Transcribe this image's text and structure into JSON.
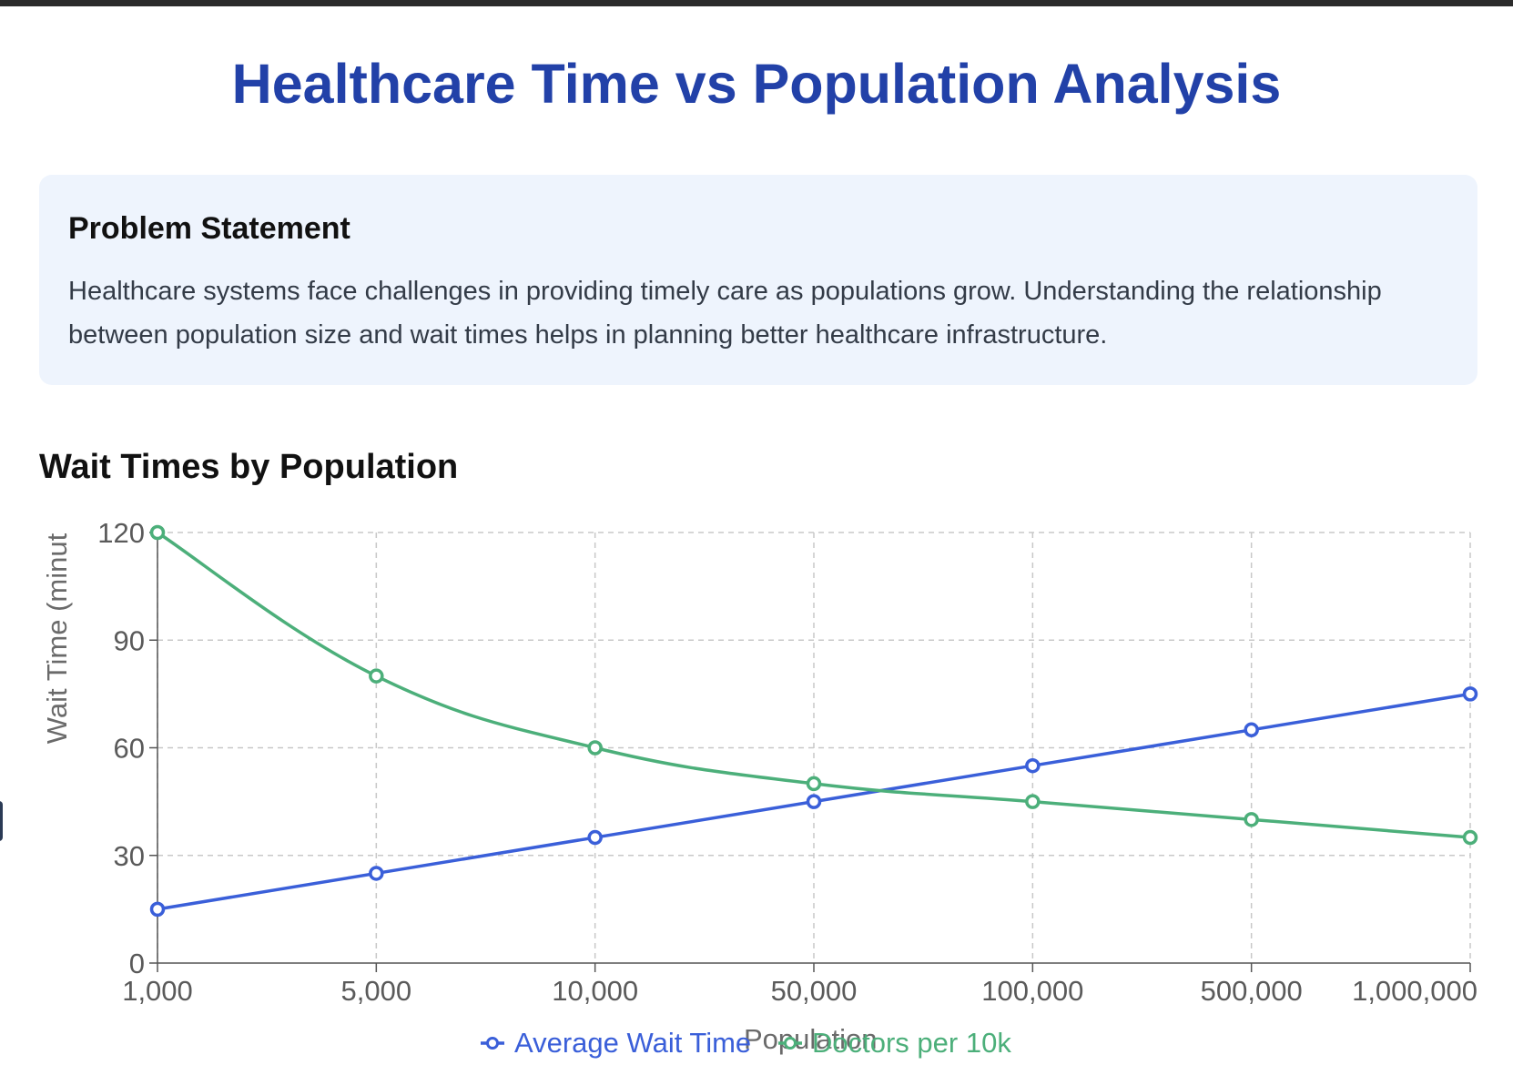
{
  "page": {
    "title": "Healthcare Time vs Population Analysis"
  },
  "problem": {
    "heading": "Problem Statement",
    "text": "Healthcare systems face challenges in providing timely care as populations grow. Understanding the relationship between population size and wait times helps in planning better healthcare infrastructure."
  },
  "colors": {
    "title": "#2241a8",
    "wait_series": "#3a5fd9",
    "doctors_series": "#4caf7a",
    "grid": "#c8c8c8",
    "axis_text": "#5a5a5a"
  },
  "chart_data": {
    "type": "line",
    "title": "Wait Times by Population",
    "xlabel": "Population",
    "ylabel": "Wait Time (minut",
    "categories": [
      "1,000",
      "5,000",
      "10,000",
      "50,000",
      "100,000",
      "500,000",
      "1,000,000"
    ],
    "ylim": [
      0,
      120
    ],
    "yticks": [
      "0",
      "30",
      "60",
      "90",
      "120"
    ],
    "grid": true,
    "legend_position": "bottom",
    "series": [
      {
        "name": "Average Wait Time",
        "color": "#3a5fd9",
        "curve": "linear",
        "values": [
          15,
          25,
          35,
          45,
          55,
          65,
          75
        ]
      },
      {
        "name": "Doctors per 10k",
        "color": "#4caf7a",
        "curve": "smooth",
        "values": [
          120,
          80,
          60,
          50,
          45,
          40,
          35
        ]
      }
    ]
  }
}
